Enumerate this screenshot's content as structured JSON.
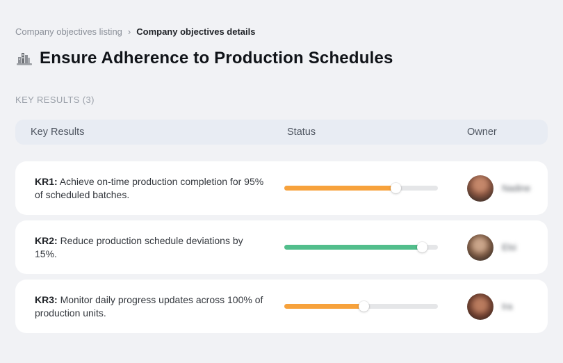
{
  "breadcrumb": {
    "separator": "›",
    "items": [
      {
        "label": "Company objectives listing"
      },
      {
        "label": "Company objectives details"
      }
    ]
  },
  "header": {
    "icon": "building-bars-icon",
    "title": "Ensure Adherence to Production Schedules"
  },
  "section": {
    "label": "KEY RESULTS (3)"
  },
  "table": {
    "columns": [
      "Key Results",
      "Status",
      "Owner"
    ],
    "rows": [
      {
        "kr_label": "KR1:",
        "description": "Achieve on-time production completion for 95% of scheduled batches.",
        "progress_percent": 73,
        "progress_color": "#F7A23C",
        "owner_name": "Nadine"
      },
      {
        "kr_label": "KR2:",
        "description": "Reduce production schedule deviations by 15%.",
        "progress_percent": 90,
        "progress_color": "#52BE8C",
        "owner_name": "Elsi"
      },
      {
        "kr_label": "KR3:",
        "description": "Monitor daily progress updates across 100% of production units.",
        "progress_percent": 52,
        "progress_color": "#F7A23C",
        "owner_name": "Ira"
      }
    ]
  },
  "colors": {
    "page_background": "#F1F2F5",
    "table_header_background": "#E8ECF3",
    "card_background": "#FFFFFF",
    "progress_track": "#E5E6E8",
    "orange_status": "#F7A23C",
    "green_status": "#52BE8C"
  }
}
